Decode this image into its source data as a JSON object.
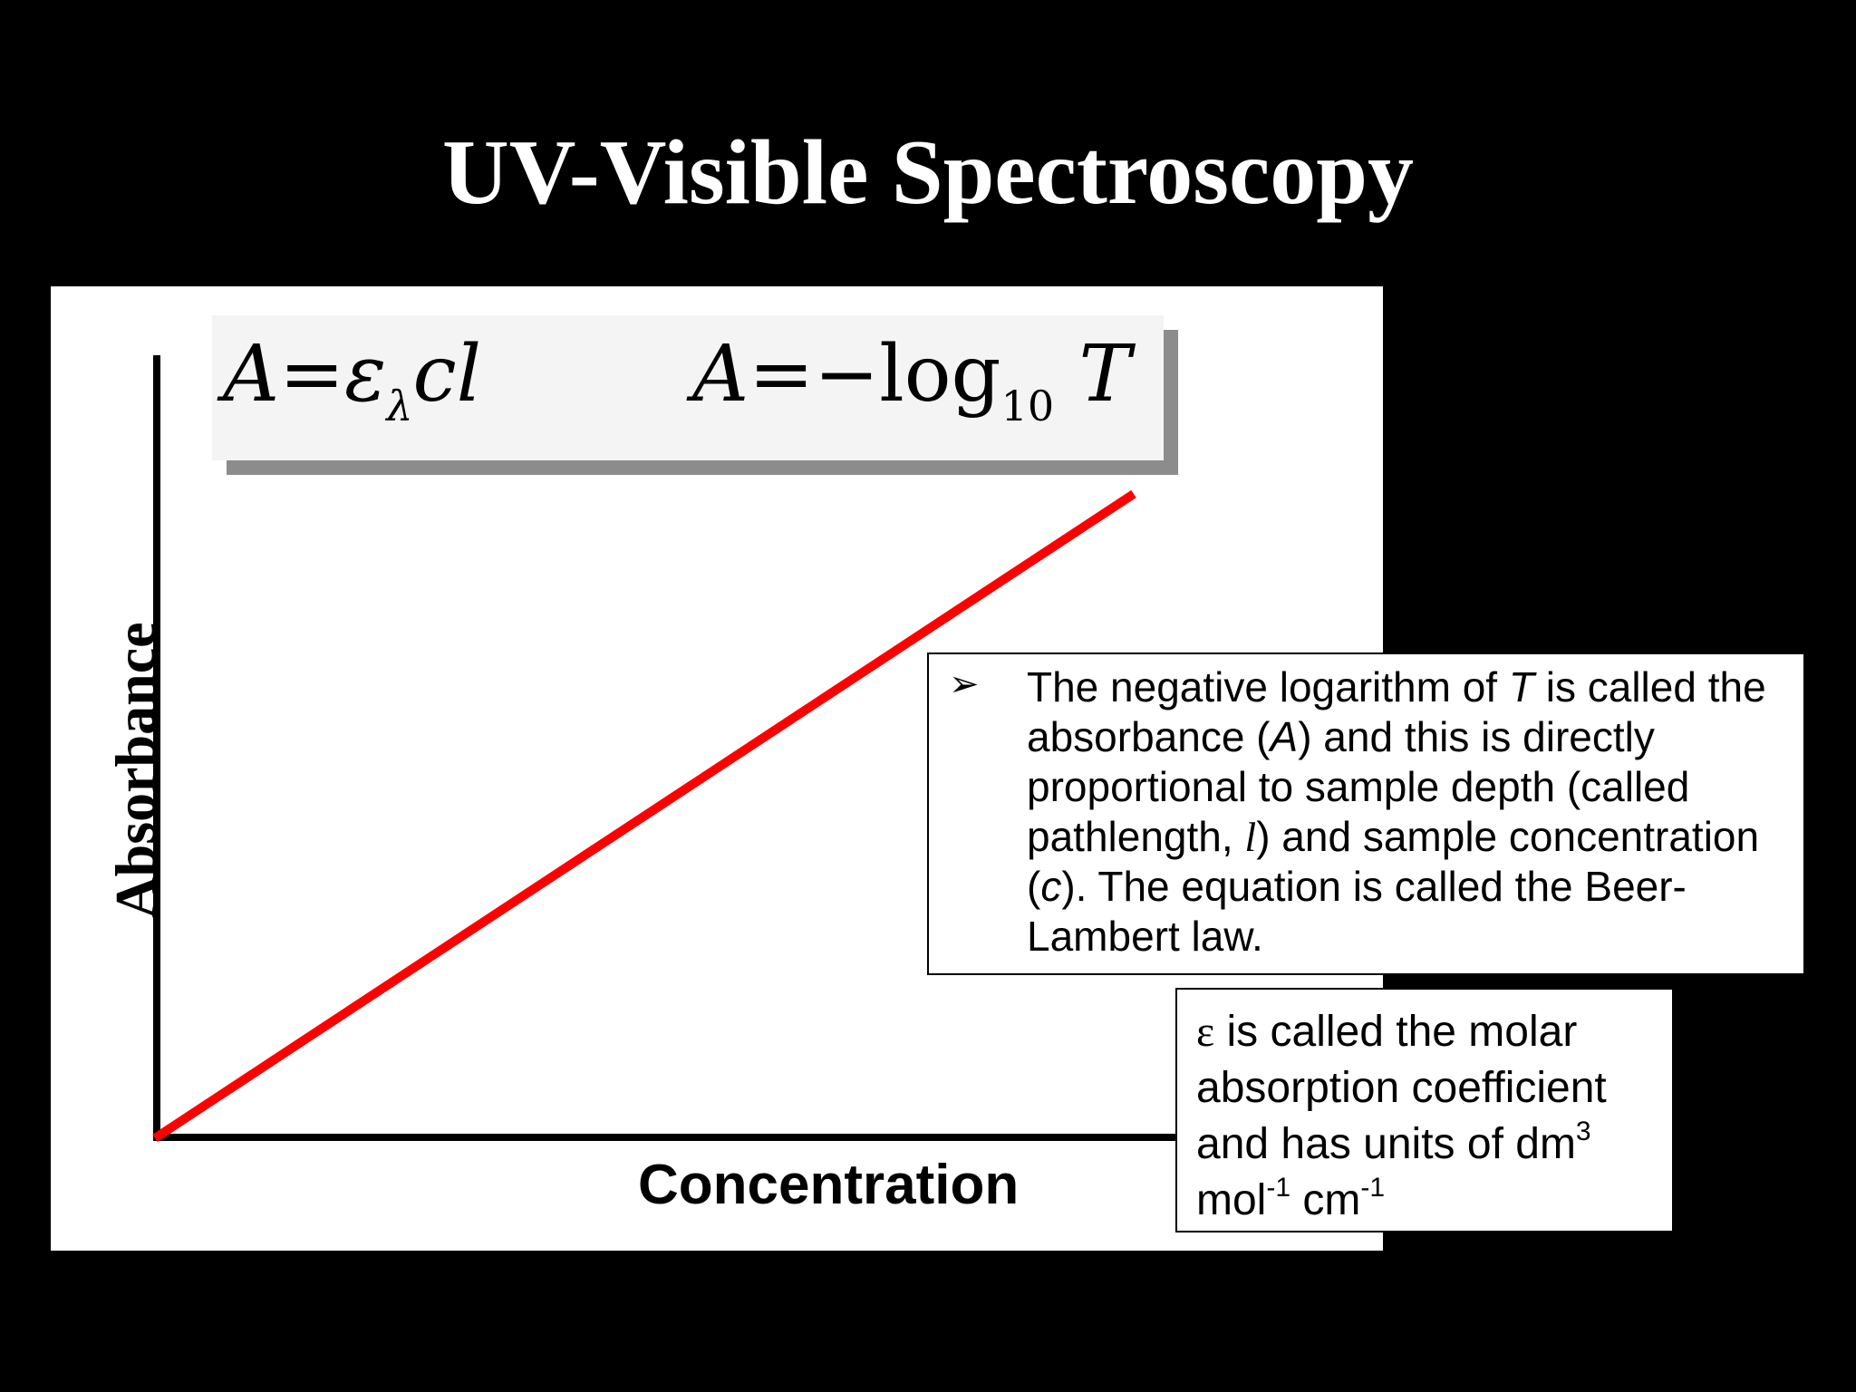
{
  "slide": {
    "title": "UV-Visible Spectroscopy"
  },
  "graph": {
    "y_axis_label": "Absorbance",
    "x_axis_label": "Concentration",
    "line_color": "#ff0000",
    "line_description": "straight line through origin"
  },
  "formulas": {
    "beer_lambert": {
      "lhs": "A",
      "equals": "=",
      "epsilon": "ε",
      "lambda": "λ",
      "rest": "cl"
    },
    "absorbance_def": {
      "lhs": "A",
      "equals": "=",
      "minus": "−",
      "log": "log",
      "base": "10",
      "var": "T"
    }
  },
  "bullet": {
    "glyph": "➢",
    "segments": [
      {
        "text": "The negative logarithm of ",
        "style": "normal"
      },
      {
        "text": "T",
        "style": "italic"
      },
      {
        "text": " is called the absorbance (",
        "style": "normal"
      },
      {
        "text": "A",
        "style": "italic"
      },
      {
        "text": ") and this is directly proportional to sample depth (called pathlength, ",
        "style": "normal"
      },
      {
        "text": "l",
        "style": "italic-serif"
      },
      {
        "text": ") and sample concentration (",
        "style": "normal"
      },
      {
        "text": "c",
        "style": "italic"
      },
      {
        "text": "). The equation is called the Beer-Lambert law.",
        "style": "normal"
      }
    ]
  },
  "coefficient_note": {
    "symbol": "ε",
    "text1": " is called the molar absorption coefficient and has  units of dm",
    "sup1": "3",
    "text2": " mol",
    "sup2": "-1",
    "text3": " cm",
    "sup3": "-1"
  }
}
